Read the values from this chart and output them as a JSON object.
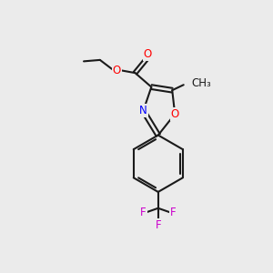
{
  "background_color": "#ebebeb",
  "bond_color": "#1a1a1a",
  "line_width": 1.5,
  "atom_colors": {
    "O": "#ff0000",
    "N": "#0000ff",
    "F": "#cc00cc",
    "C": "#1a1a1a"
  },
  "font_size": 8.5,
  "fig_size": [
    3.0,
    3.0
  ],
  "dpi": 100
}
